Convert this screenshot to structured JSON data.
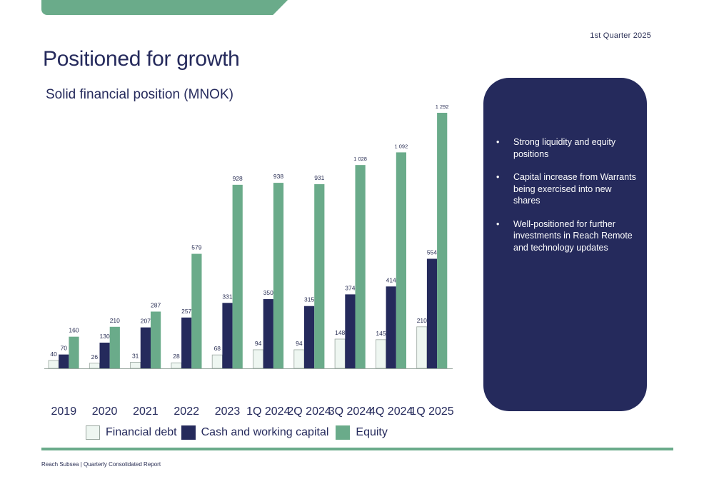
{
  "header": {
    "period": "1st Quarter 2025",
    "title": "Positioned for growth"
  },
  "colors": {
    "accent_green": "#6aab8a",
    "navy": "#252a5c",
    "financial_debt_fill": "#eef6f1"
  },
  "chart_data": {
    "type": "bar",
    "title": "Solid financial position (MNOK)",
    "categories": [
      "2019",
      "2020",
      "2021",
      "2022",
      "2023",
      "1Q 2024",
      "2Q 2024",
      "3Q 2024",
      "4Q 2024",
      "1Q 2025"
    ],
    "series": [
      {
        "name": "Financial debt",
        "values": [
          40,
          26,
          31,
          28,
          68,
          94,
          94,
          148,
          145,
          210
        ],
        "labels": [
          "40",
          "26",
          "31",
          "28",
          "68",
          "94",
          "94",
          "148",
          "145",
          "210"
        ],
        "color": "#eef6f1"
      },
      {
        "name": "Cash and working capital",
        "values": [
          70,
          130,
          207,
          257,
          331,
          350,
          315,
          374,
          414,
          554
        ],
        "labels": [
          "70",
          "130",
          "207",
          "257",
          "331",
          "350",
          "315",
          "374",
          "414",
          "554"
        ],
        "color": "#252a5c"
      },
      {
        "name": "Equity",
        "values": [
          160,
          210,
          287,
          579,
          928,
          938,
          931,
          1028,
          1092,
          1292
        ],
        "labels": [
          "160",
          "210",
          "287",
          "579",
          "928",
          "938",
          "931",
          "1 028",
          "1 092",
          "1 292"
        ],
        "color": "#6aab8a"
      }
    ],
    "xlabel": "",
    "ylabel": "",
    "ylim": [
      0,
      1292
    ],
    "grid": false,
    "legend": "bottom"
  },
  "panel": {
    "bullets": [
      "Strong liquidity and equity positions",
      "Capital increase from Warrants being exercised into new shares",
      "Well-positioned for further investments in Reach Remote and technology updates"
    ],
    "bullet_symbol": "•"
  },
  "footer": {
    "text": "Reach Subsea | Quarterly Consolidated Report"
  }
}
